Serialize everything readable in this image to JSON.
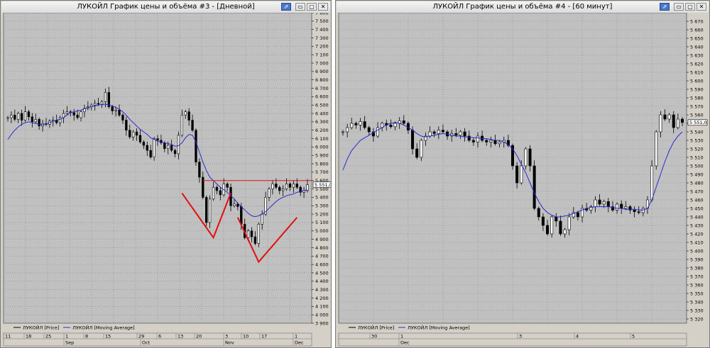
{
  "windows": {
    "left": {
      "title": "ЛУКОЙЛ График цены и объёма #3 - [Дневной]",
      "buttons": [
        "⇗",
        "▭",
        "▢",
        "✕"
      ]
    },
    "right": {
      "title": "ЛУКОЙЛ График цены и объёма #4 - [60 минут]",
      "buttons": [
        "⇗",
        "▭",
        "▢",
        "✕"
      ]
    }
  },
  "colors": {
    "bg": "#c0c0c0",
    "grid": "#8c8c8c",
    "ma": "#2a2ad0",
    "annot": "#e01010",
    "candle": "#000000"
  },
  "chart_data": [
    {
      "type": "line",
      "title": "ЛУКОЙЛ График цены и объёма #3 - [Дневной]",
      "ylim": [
        3900,
        7600
      ],
      "y_ticks": [
        3900,
        4000,
        4100,
        4200,
        4300,
        4400,
        4500,
        4600,
        4700,
        4800,
        4900,
        5000,
        5100,
        5200,
        5300,
        5400,
        5500,
        5600,
        5700,
        5800,
        5900,
        6000,
        6100,
        6200,
        6300,
        6400,
        6500,
        6600,
        6700,
        6800,
        6900,
        7000,
        7100,
        7200,
        7300,
        7400,
        7500,
        7600
      ],
      "x_day_labels": [
        "11",
        "18",
        "25",
        "1",
        "8",
        "15",
        "29",
        "6",
        "13",
        "20",
        "3",
        "10",
        "17",
        "1"
      ],
      "x_month_labels": [
        "Sep",
        "Oct",
        "Nov",
        "Dec"
      ],
      "last_price_label": "5 551,0",
      "series": [
        {
          "name": "ЛУКОЙЛ [Price]",
          "values": [
            6350,
            6380,
            6330,
            6400,
            6320,
            6420,
            6360,
            6300,
            6330,
            6250,
            6280,
            6270,
            6310,
            6320,
            6290,
            6350,
            6400,
            6420,
            6410,
            6380,
            6350,
            6420,
            6460,
            6480,
            6500,
            6520,
            6510,
            6540,
            6650,
            6480,
            6430,
            6440,
            6380,
            6320,
            6200,
            6120,
            6180,
            6140,
            6060,
            6020,
            5960,
            5880,
            6100,
            6080,
            6050,
            5980,
            6020,
            5960,
            5920,
            6140,
            6380,
            6420,
            6320,
            6200,
            5820,
            5640,
            5400,
            5100,
            5380,
            5520,
            5480,
            5430,
            5560,
            5520,
            5300,
            5320,
            5290,
            5080,
            4920,
            5000,
            4930,
            4850,
            5080,
            5200,
            5400,
            5500,
            5560,
            5520,
            5480,
            5500,
            5560,
            5520,
            5560,
            5520,
            5460,
            5480,
            5551
          ]
        },
        {
          "name": "ЛУКОЙЛ [Moving Average]",
          "values": [
            6090,
            6150,
            6200,
            6240,
            6270,
            6290,
            6300,
            6290,
            6280,
            6270,
            6265,
            6275,
            6290,
            6305,
            6320,
            6330,
            6350,
            6380,
            6410,
            6420,
            6430,
            6440,
            6455,
            6470,
            6480,
            6490,
            6500,
            6505,
            6510,
            6500,
            6490,
            6470,
            6450,
            6420,
            6380,
            6330,
            6290,
            6250,
            6210,
            6180,
            6150,
            6110,
            6090,
            6070,
            6060,
            6050,
            6040,
            6030,
            6010,
            6015,
            6050,
            6110,
            6150,
            6140,
            6060,
            5940,
            5820,
            5720,
            5640,
            5600,
            5560,
            5520,
            5490,
            5460,
            5420,
            5380,
            5330,
            5290,
            5250,
            5210,
            5180,
            5170,
            5180,
            5200,
            5230,
            5270,
            5310,
            5350,
            5380,
            5400,
            5420,
            5430,
            5440,
            5460,
            5470,
            5480,
            5490
          ]
        }
      ],
      "annotations": {
        "resistance_level": 5600,
        "v_shapes": [
          {
            "index_start": 50,
            "index_bottom": 59,
            "index_end": 64,
            "top_value": 5450,
            "bottom_value": 4920
          },
          {
            "index_start": 66,
            "index_bottom": 72,
            "index_end": 83,
            "top_value": 5160,
            "bottom_value": 4630
          }
        ]
      },
      "legend": [
        "ЛУКОЙЛ [Price]",
        "ЛУКОЙЛ [Moving Average]"
      ],
      "grid": true,
      "legend_position": "bottom-left"
    },
    {
      "type": "line",
      "title": "ЛУКОЙЛ График цены и объёма #4 - [60 минут]",
      "ylim": [
        5315,
        5680
      ],
      "y_ticks": [
        5320,
        5330,
        5340,
        5350,
        5360,
        5370,
        5380,
        5390,
        5400,
        5410,
        5420,
        5430,
        5440,
        5450,
        5460,
        5470,
        5480,
        5490,
        5500,
        5510,
        5520,
        5530,
        5540,
        5550,
        5560,
        5570,
        5580,
        5590,
        5600,
        5610,
        5620,
        5630,
        5640,
        5650,
        5660,
        5670
      ],
      "x_day_labels": [
        "30",
        "1",
        "3",
        "4",
        "5"
      ],
      "x_month_labels": [
        "Dec"
      ],
      "last_price_label": "5 551,0",
      "series": [
        {
          "name": "ЛУКОЙЛ [Price]",
          "values": [
            5540,
            5545,
            5550,
            5548,
            5552,
            5545,
            5540,
            5535,
            5545,
            5550,
            5548,
            5546,
            5550,
            5553,
            5550,
            5542,
            5520,
            5510,
            5530,
            5535,
            5540,
            5538,
            5542,
            5540,
            5535,
            5538,
            5536,
            5540,
            5535,
            5530,
            5528,
            5535,
            5530,
            5528,
            5530,
            5526,
            5528,
            5530,
            5524,
            5500,
            5480,
            5500,
            5520,
            5500,
            5450,
            5440,
            5430,
            5420,
            5440,
            5435,
            5420,
            5425,
            5440,
            5445,
            5440,
            5450,
            5448,
            5452,
            5460,
            5455,
            5458,
            5452,
            5448,
            5455,
            5450,
            5452,
            5448,
            5446,
            5445,
            5450,
            5460,
            5500,
            5540,
            5560,
            5555,
            5560,
            5545,
            5555,
            5551
          ]
        },
        {
          "name": "ЛУКОЙЛ [Moving Average]",
          "values": [
            5495,
            5508,
            5518,
            5524,
            5530,
            5533,
            5536,
            5539,
            5542,
            5545,
            5548,
            5550,
            5551,
            5550,
            5548,
            5545,
            5542,
            5538,
            5535,
            5534,
            5535,
            5536,
            5537,
            5538,
            5537,
            5536,
            5535,
            5535,
            5534,
            5534,
            5533,
            5533,
            5532,
            5532,
            5531,
            5530,
            5530,
            5528,
            5525,
            5520,
            5512,
            5502,
            5492,
            5480,
            5468,
            5458,
            5450,
            5445,
            5442,
            5440,
            5440,
            5441,
            5442,
            5444,
            5446,
            5448,
            5450,
            5451,
            5452,
            5452,
            5452,
            5452,
            5451,
            5450,
            5450,
            5449,
            5449,
            5449,
            5448,
            5448,
            5450,
            5460,
            5475,
            5490,
            5505,
            5518,
            5528,
            5535,
            5540
          ]
        }
      ],
      "legend": [
        "ЛУКОЙЛ [Price]",
        "ЛУКОЙЛ [Moving Average]"
      ],
      "grid": true,
      "legend_position": "bottom-left"
    }
  ]
}
